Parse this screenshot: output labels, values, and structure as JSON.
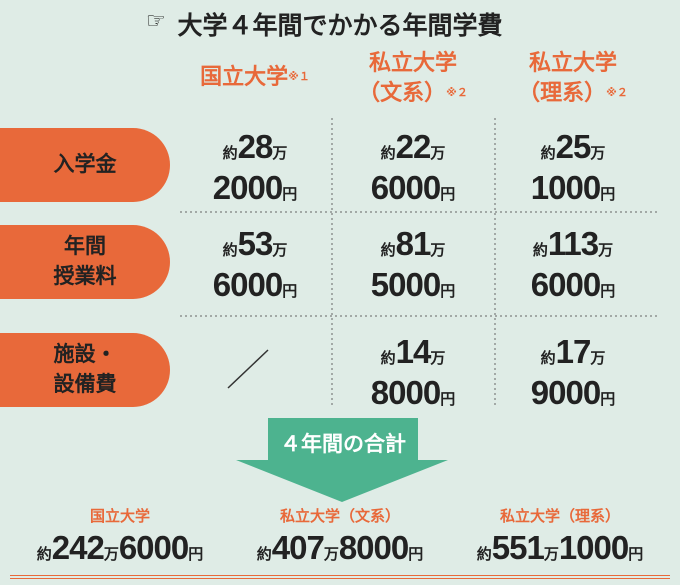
{
  "header": {
    "title": "大学４年間でかかる年間学費"
  },
  "columns": [
    {
      "lines": [
        "国立大学"
      ],
      "note": "※１"
    },
    {
      "lines": [
        "私立大学",
        "（文系）"
      ],
      "note": "※２"
    },
    {
      "lines": [
        "私立大学",
        "（理系）"
      ],
      "note": "※２"
    }
  ],
  "rows": [
    {
      "label_lines": [
        "入学金"
      ],
      "cells": [
        [
          "約",
          "28",
          "万",
          "2000",
          "円"
        ],
        [
          "約",
          "22",
          "万",
          "6000",
          "円"
        ],
        [
          "約",
          "25",
          "万",
          "1000",
          "円"
        ]
      ]
    },
    {
      "label_lines": [
        "年間",
        "授業料"
      ],
      "cells": [
        [
          "約",
          "53",
          "万",
          "6000",
          "円"
        ],
        [
          "約",
          "81",
          "万",
          "5000",
          "円"
        ],
        [
          "約",
          "113",
          "万",
          "6000",
          "円"
        ]
      ]
    },
    {
      "label_lines": [
        "施設・",
        "設備費"
      ],
      "cells": [
        null,
        [
          "約",
          "14",
          "万",
          "8000",
          "円"
        ],
        [
          "約",
          "17",
          "万",
          "9000",
          "円"
        ]
      ]
    }
  ],
  "summary": {
    "label": "４年間の合計",
    "items": [
      {
        "name": "国立大学",
        "amount": [
          "約",
          "242",
          "万",
          "6000",
          "円"
        ]
      },
      {
        "name": "私立大学（文系）",
        "amount": [
          "約",
          "407",
          "万",
          "8000",
          "円"
        ]
      },
      {
        "name": "私立大学（理系）",
        "amount": [
          "約",
          "551",
          "万",
          "1000",
          "円"
        ]
      }
    ]
  }
}
